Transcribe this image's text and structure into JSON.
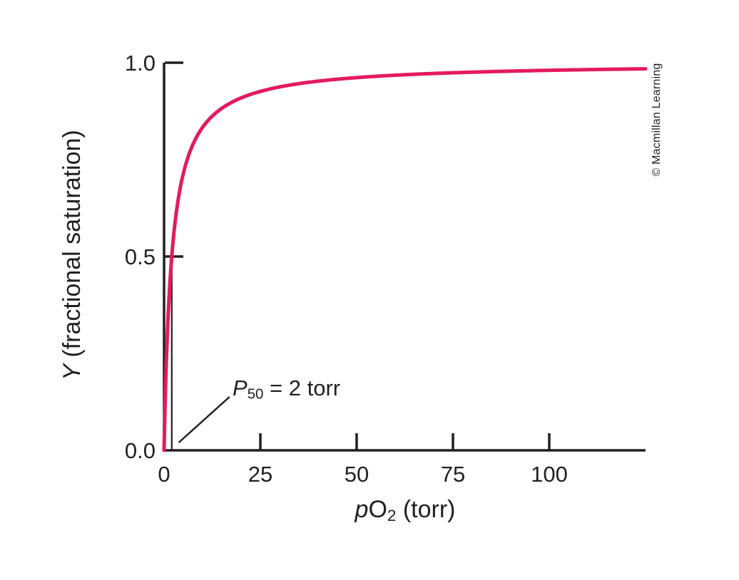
{
  "figure": {
    "background": "#ffffff",
    "text_color": "#231f20",
    "axis_color": "#231f20",
    "credit": "© Macmillan Learning"
  },
  "chart_data": {
    "type": "line",
    "title": "",
    "xlabel_text": "pO2 (torr)",
    "xlabel_parts": {
      "var": "p",
      "molecule": "O",
      "subscript": "2",
      "rest": " (torr)"
    },
    "ylabel_text": "Y (fractional saturation)",
    "ylabel_parts": {
      "var": "Y",
      "rest": " (fractional saturation)"
    },
    "xlim": [
      0,
      125
    ],
    "ylim": [
      0,
      1.0
    ],
    "grid": false,
    "legend": "none",
    "x_ticks": [
      {
        "value": 0,
        "label": "0"
      },
      {
        "value": 25,
        "label": "25"
      },
      {
        "value": 50,
        "label": "50"
      },
      {
        "value": 75,
        "label": "75"
      },
      {
        "value": 100,
        "label": "100"
      }
    ],
    "y_ticks": [
      {
        "value": 1.0,
        "label": "1.0"
      },
      {
        "value": 0.5,
        "label": "0.5"
      },
      {
        "value": 0.0,
        "label": "0.0"
      }
    ],
    "series": [
      {
        "name": "fractional-saturation-curve",
        "model": "hyperbolic: Y = pO2 / (pO2 + P50)",
        "p50_torr": 2,
        "color": "#e41a5f",
        "points": [
          [
            0,
            0
          ],
          [
            1,
            0.333
          ],
          [
            2,
            0.5
          ],
          [
            5,
            0.714
          ],
          [
            10,
            0.833
          ],
          [
            20,
            0.909
          ],
          [
            25,
            0.926
          ],
          [
            50,
            0.962
          ],
          [
            75,
            0.974
          ],
          [
            100,
            0.98
          ],
          [
            125,
            0.984
          ]
        ]
      }
    ],
    "annotation": {
      "text": "P50 = 2 torr",
      "label_parts": {
        "var": "P",
        "subscript": "50",
        "rest": " = 2 torr"
      },
      "x_torr": 2,
      "y_saturation": 0.5
    }
  }
}
